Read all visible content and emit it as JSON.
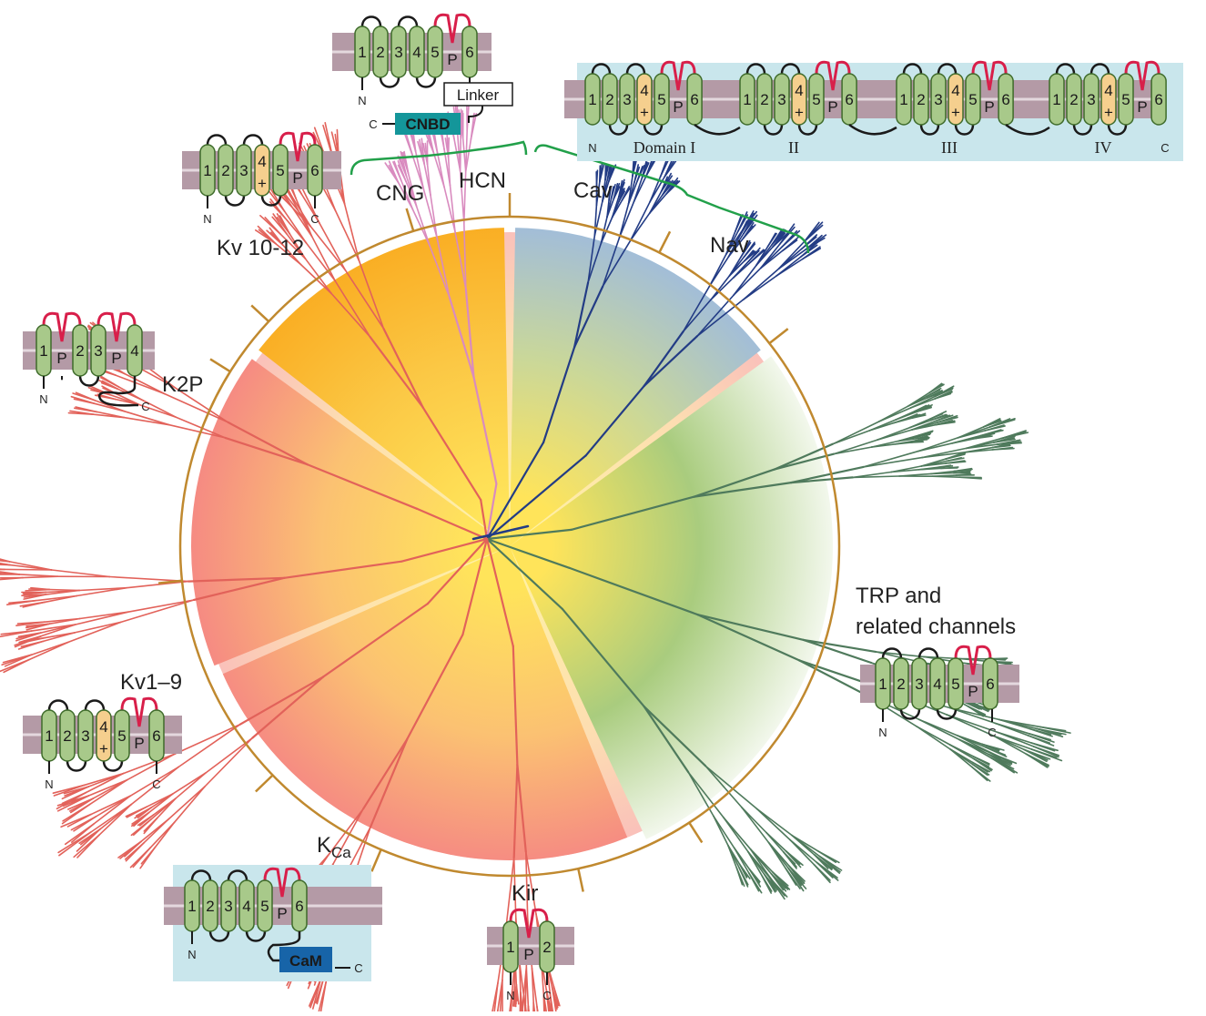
{
  "families": [
    {
      "id": "cng",
      "label": "CNG",
      "sub": ""
    },
    {
      "id": "hcn",
      "label": "HCN",
      "sub": ""
    },
    {
      "id": "cav",
      "label": "Cav",
      "sub": ""
    },
    {
      "id": "nav",
      "label": "Nav",
      "sub": ""
    },
    {
      "id": "trp1",
      "label": "TRP and",
      "sub": ""
    },
    {
      "id": "trp2",
      "label": "related channels",
      "sub": ""
    },
    {
      "id": "kir",
      "label": "Kir",
      "sub": ""
    },
    {
      "id": "kca",
      "label": "K",
      "sub": "Ca"
    },
    {
      "id": "kv19",
      "label": "Kv1–9",
      "sub": ""
    },
    {
      "id": "k2p",
      "label": "K2P",
      "sub": ""
    },
    {
      "id": "kv1012",
      "label": "Kv 10-12",
      "sub": ""
    }
  ],
  "topology": {
    "n": "N",
    "c": "C",
    "p": "P",
    "plus": "+",
    "segments": [
      "1",
      "2",
      "3",
      "4",
      "5",
      "6"
    ],
    "k2p_segments": [
      "1",
      "2",
      "3",
      "4"
    ],
    "kir_segments": [
      "1",
      "2"
    ],
    "linker": "Linker",
    "cnbd": "CNBD",
    "cam": "CaM",
    "domains": [
      "Domain I",
      "II",
      "III",
      "IV"
    ]
  },
  "colors": {
    "ring": "#c0892f",
    "bracket": "#22a04a",
    "membrane": "#b49aa6",
    "segment_fill": "#a8c98a",
    "segment_stroke": "#3e6b2a",
    "voltage_sensor": "#f5cf8e",
    "pore_loop": "#d81f4a",
    "cytoplasm_box": "#c9e6ec",
    "cnbd": "#14969a",
    "cam": "#1764a8",
    "branch_kv": "#e2625a",
    "branch_hcn": "#d98bbf",
    "branch_cav": "#233c85",
    "branch_trp": "#4f7a5c"
  }
}
